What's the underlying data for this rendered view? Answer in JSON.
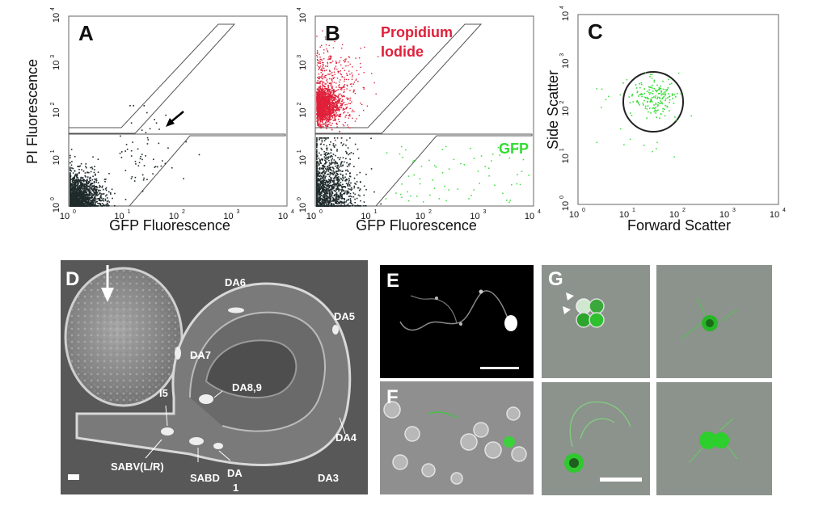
{
  "panels": {
    "A": {
      "letter": "A",
      "xlabel": "GFP Fluorescence",
      "ylabel": "PI Fluorescence",
      "x_ticks": [
        "10",
        "10",
        "10",
        "10",
        "10"
      ],
      "x_exp": [
        "0",
        "1",
        "2",
        "3",
        "4"
      ],
      "y_ticks": [
        "10",
        "10",
        "10",
        "10",
        "10"
      ],
      "y_exp": [
        "0",
        "1",
        "2",
        "3",
        "4"
      ]
    },
    "B": {
      "letter": "B",
      "xlabel": "GFP Fluorescence",
      "label_pi_line1": "Propidium",
      "label_pi_line2": "Iodide",
      "label_gfp": "GFP",
      "x_exp": [
        "0",
        "1",
        "2",
        "3",
        "4"
      ],
      "y_exp": [
        "0",
        "1",
        "2",
        "3",
        "4"
      ]
    },
    "C": {
      "letter": "C",
      "xlabel": "Forward Scatter",
      "ylabel": "Side Scatter",
      "x_exp": [
        "0",
        "1",
        "2",
        "3",
        "4"
      ],
      "y_exp": [
        "0",
        "1",
        "2",
        "3",
        "4"
      ]
    },
    "D": {
      "letter": "D",
      "cells": [
        "DA6",
        "DA5",
        "DA7",
        "DA8,9",
        "I5",
        "DA4",
        "SABV(L/R)",
        "SABD",
        "DA",
        "1",
        "DA3"
      ]
    },
    "E": {
      "letter": "E"
    },
    "F": {
      "letter": "F"
    },
    "G": {
      "letter": "G"
    }
  },
  "colors": {
    "pi_red": "#e0203a",
    "gfp_green": "#33dd33",
    "dots_dark": "#1f2a2a"
  }
}
